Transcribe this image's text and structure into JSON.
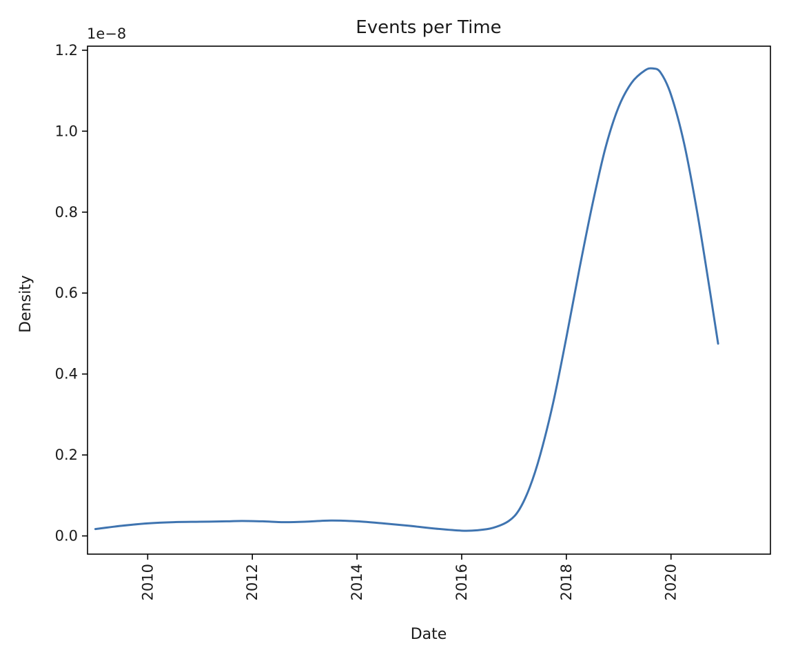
{
  "chart_data": {
    "type": "line",
    "title": "Events per Time",
    "xlabel": "Date",
    "ylabel": "Density",
    "y_offset_label": "1e−8",
    "xlim": [
      2008.85,
      2021.9
    ],
    "ylim": [
      -0.045,
      1.21
    ],
    "x_ticks": [
      2010,
      2012,
      2014,
      2016,
      2018,
      2020
    ],
    "x_tick_labels": [
      "2010",
      "2012",
      "2014",
      "2016",
      "2018",
      "2020"
    ],
    "y_ticks": [
      0.0,
      0.2,
      0.4,
      0.6,
      0.8,
      1.0,
      1.2
    ],
    "y_tick_labels": [
      "0.0",
      "0.2",
      "0.4",
      "0.6",
      "0.8",
      "1.0",
      "1.2"
    ],
    "grid": false,
    "line_color": "#3f74b0",
    "series": [
      {
        "x": [
          2009.0,
          2009.5,
          2010.0,
          2010.5,
          2011.0,
          2011.5,
          2011.8,
          2012.2,
          2012.6,
          2013.0,
          2013.5,
          2014.0,
          2014.5,
          2015.0,
          2015.5,
          2016.0,
          2016.3,
          2016.6,
          2016.9,
          2017.1,
          2017.3,
          2017.5,
          2017.75,
          2018.0,
          2018.25,
          2018.5,
          2018.75,
          2019.0,
          2019.25,
          2019.5,
          2019.65,
          2019.8,
          2020.0,
          2020.25,
          2020.5,
          2020.75,
          2020.9
        ],
        "y": [
          0.017,
          0.025,
          0.031,
          0.034,
          0.035,
          0.036,
          0.037,
          0.036,
          0.034,
          0.035,
          0.038,
          0.036,
          0.031,
          0.025,
          0.018,
          0.013,
          0.014,
          0.02,
          0.037,
          0.065,
          0.12,
          0.2,
          0.33,
          0.49,
          0.66,
          0.82,
          0.96,
          1.06,
          1.12,
          1.15,
          1.155,
          1.145,
          1.09,
          0.97,
          0.8,
          0.6,
          0.475
        ]
      }
    ]
  }
}
